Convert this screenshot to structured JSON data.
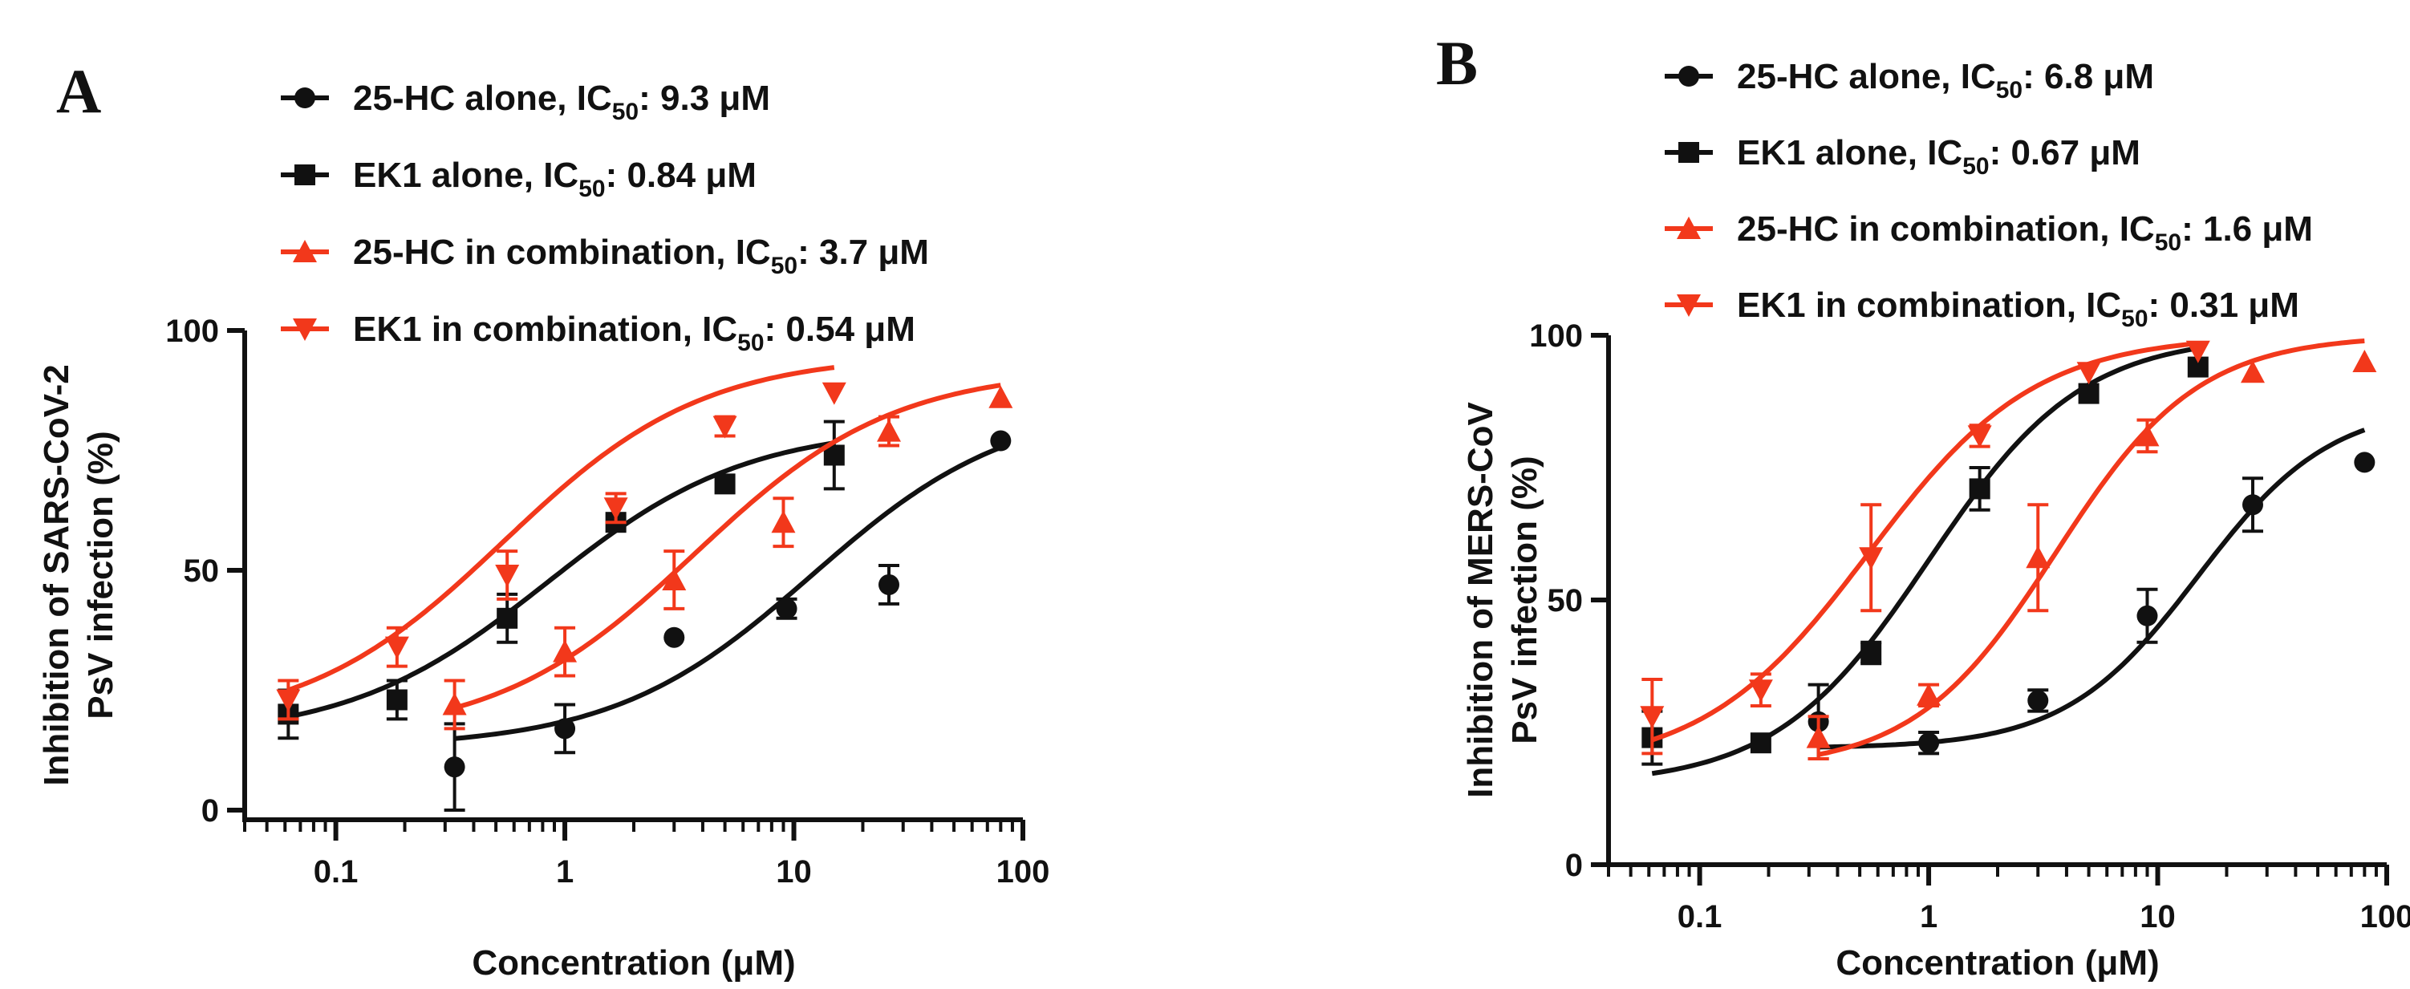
{
  "colors": {
    "black": "#111111",
    "red": "#f2381b"
  },
  "chart_data": [
    {
      "type": "scatter",
      "panel": "A",
      "xlabel": "Concentration (μM)",
      "ylabel_lines": [
        "Inhibition of SARS-CoV-2",
        "PsV infection (%)"
      ],
      "x_scale": "log",
      "xlim": [
        0.04,
        100
      ],
      "ylim": [
        -5,
        100
      ],
      "x_ticks": [
        0.1,
        1,
        10,
        100
      ],
      "x_tick_labels": [
        "0.1",
        "1",
        "10",
        "100"
      ],
      "y_ticks": [
        0,
        50,
        100
      ],
      "y_tick_labels": [
        "0",
        "50",
        "100"
      ],
      "grid": false,
      "legend_position": "top",
      "series": [
        {
          "name": "25-HC alone,",
          "ic50": "9.3 μM",
          "marker": "circle",
          "color": "#111111",
          "x": [
            0.33,
            1.0,
            3.0,
            9.3,
            26,
            80
          ],
          "y": [
            9,
            17,
            36,
            42,
            47,
            77
          ],
          "err": [
            9,
            5,
            0,
            2,
            4,
            0
          ],
          "fit": {
            "bottom": 13,
            "top": 85,
            "ec50": 12,
            "hill": 1.0,
            "xmin": 0.33,
            "xmax": 80
          }
        },
        {
          "name": "EK1 alone,",
          "ic50": "0.84 μM",
          "marker": "square",
          "color": "#111111",
          "x": [
            0.062,
            0.185,
            0.56,
            1.67,
            5.0,
            15.0
          ],
          "y": [
            20,
            23,
            40,
            60,
            68,
            74
          ],
          "err": [
            5,
            4,
            5,
            0,
            0,
            7
          ],
          "fit": {
            "bottom": 15,
            "top": 80,
            "ec50": 0.84,
            "hill": 1.0,
            "xmin": 0.062,
            "xmax": 15
          }
        },
        {
          "name": "25-HC in combination,",
          "ic50": "3.7 μM",
          "marker": "triangle-up",
          "color": "#f2381b",
          "x": [
            0.33,
            1.0,
            3.0,
            9.0,
            26,
            80
          ],
          "y": [
            22,
            33,
            48,
            60,
            79,
            86
          ],
          "err": [
            5,
            5,
            6,
            5,
            3,
            0
          ],
          "fit": {
            "bottom": 15,
            "top": 92,
            "ec50": 3.7,
            "hill": 1.0,
            "xmin": 0.33,
            "xmax": 80
          }
        },
        {
          "name": "EK1 in combination,",
          "ic50": "0.54 μM",
          "marker": "triangle-down",
          "color": "#f2381b",
          "x": [
            0.062,
            0.185,
            0.56,
            1.67,
            5.0,
            15.0
          ],
          "y": [
            23,
            34,
            49,
            63,
            80,
            87
          ],
          "err": [
            4,
            4,
            5,
            3,
            2,
            0
          ],
          "fit": {
            "bottom": 17,
            "top": 95,
            "ec50": 0.54,
            "hill": 1.0,
            "xmin": 0.062,
            "xmax": 15
          }
        }
      ]
    },
    {
      "type": "scatter",
      "panel": "B",
      "xlabel": "Concentration (μM)",
      "ylabel_lines": [
        "Inhibition of MERS-CoV",
        "PsV infection (%)"
      ],
      "x_scale": "log",
      "xlim": [
        0.04,
        100
      ],
      "ylim": [
        0,
        100
      ],
      "x_ticks": [
        0.1,
        1,
        10,
        100
      ],
      "x_tick_labels": [
        "0.1",
        "1",
        "10",
        "100"
      ],
      "y_ticks": [
        0,
        50,
        100
      ],
      "y_tick_labels": [
        "0",
        "50",
        "100"
      ],
      "grid": false,
      "legend_position": "top",
      "series": [
        {
          "name": "25-HC alone,",
          "ic50": "6.8 μM",
          "marker": "circle",
          "color": "#111111",
          "x": [
            0.33,
            1.0,
            3.0,
            9.0,
            26,
            80
          ],
          "y": [
            27,
            23,
            31,
            47,
            68,
            76
          ],
          "err": [
            7,
            2,
            2,
            5,
            5,
            0
          ],
          "fit": {
            "bottom": 22,
            "top": 87,
            "ec50": 15,
            "hill": 1.5,
            "xmin": 0.33,
            "xmax": 80
          }
        },
        {
          "name": "EK1 alone,",
          "ic50": "0.67 μM",
          "marker": "square",
          "color": "#111111",
          "x": [
            0.062,
            0.185,
            0.56,
            1.67,
            5.0,
            15.0
          ],
          "y": [
            24,
            23,
            40,
            71,
            89,
            94
          ],
          "err": [
            5,
            0,
            2,
            4,
            0,
            0
          ],
          "fit": {
            "bottom": 15,
            "top": 100,
            "ec50": 1.0,
            "hill": 1.3,
            "xmin": 0.062,
            "xmax": 15
          }
        },
        {
          "name": "25-HC in combination,",
          "ic50": "1.6 μM",
          "marker": "triangle-up",
          "color": "#f2381b",
          "x": [
            0.33,
            1.0,
            3.0,
            9.0,
            26,
            80
          ],
          "y": [
            24,
            32,
            58,
            81,
            93,
            95
          ],
          "err": [
            4,
            2,
            10,
            3,
            0,
            0
          ],
          "fit": {
            "bottom": 18,
            "top": 100,
            "ec50": 3.6,
            "hill": 1.4,
            "xmin": 0.33,
            "xmax": 80
          }
        },
        {
          "name": "EK1 in combination,",
          "ic50": "0.31 μM",
          "marker": "triangle-down",
          "color": "#f2381b",
          "x": [
            0.062,
            0.185,
            0.56,
            1.67,
            5.0,
            15.0
          ],
          "y": [
            28,
            33,
            58,
            81,
            93,
            97
          ],
          "err": [
            7,
            3,
            10,
            2,
            0,
            0
          ],
          "fit": {
            "bottom": 18,
            "top": 100,
            "ec50": 0.55,
            "hill": 1.2,
            "xmin": 0.062,
            "xmax": 15
          }
        }
      ]
    }
  ],
  "legend_prefix": "IC",
  "legend_subscript": "50",
  "legend_colon": ":"
}
